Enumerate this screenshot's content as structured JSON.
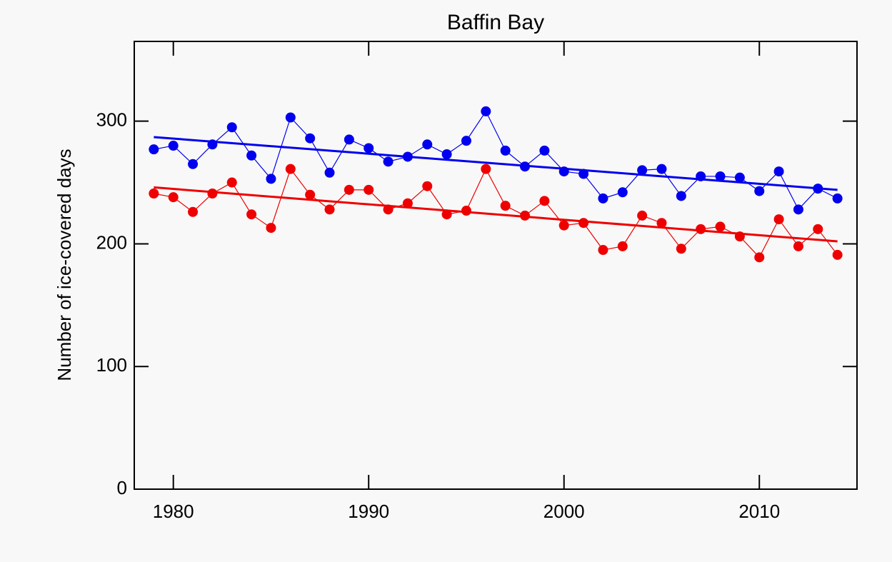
{
  "chart_data": {
    "type": "line",
    "title": "Baffin Bay",
    "ylabel": "Number of ice-covered days",
    "x": [
      1979,
      1980,
      1981,
      1982,
      1983,
      1984,
      1985,
      1986,
      1987,
      1988,
      1989,
      1990,
      1991,
      1992,
      1993,
      1994,
      1995,
      1996,
      1997,
      1998,
      1999,
      2000,
      2001,
      2002,
      2003,
      2004,
      2005,
      2006,
      2007,
      2008,
      2009,
      2010,
      2011,
      2012,
      2013,
      2014
    ],
    "series": [
      {
        "color": "#0000ee",
        "values": [
          277,
          280,
          265,
          281,
          295,
          272,
          253,
          303,
          286,
          258,
          285,
          278,
          267,
          271,
          281,
          273,
          284,
          308,
          276,
          263,
          276,
          259,
          257,
          237,
          242,
          260,
          261,
          239,
          255,
          255,
          254,
          243,
          259,
          228,
          245,
          237
        ]
      },
      {
        "color": "#ee0000",
        "values": [
          241,
          238,
          226,
          241,
          250,
          224,
          213,
          261,
          240,
          228,
          244,
          244,
          228,
          233,
          247,
          224,
          227,
          261,
          231,
          223,
          235,
          215,
          217,
          195,
          198,
          223,
          217,
          196,
          212,
          214,
          206,
          189,
          220,
          198,
          212,
          191
        ]
      }
    ],
    "trends": [
      {
        "color": "#0000ee",
        "x": [
          1979,
          2014
        ],
        "values": [
          287,
          244
        ]
      },
      {
        "color": "#ee0000",
        "x": [
          1979,
          2014
        ],
        "values": [
          246,
          202
        ]
      }
    ],
    "xlim": [
      1978,
      2015
    ],
    "ylim": [
      0,
      365
    ],
    "xticks": [
      1980,
      1990,
      2000,
      2010
    ],
    "yticks": [
      0,
      100,
      200,
      300
    ]
  }
}
